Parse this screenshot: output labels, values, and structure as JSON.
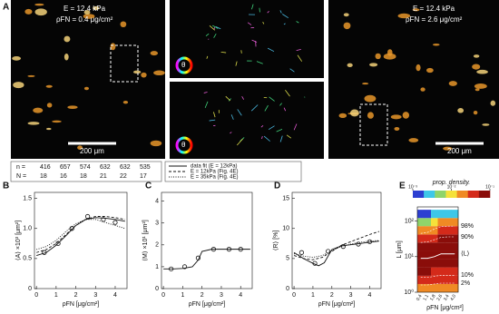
{
  "panel_labels": [
    "A",
    "B",
    "C",
    "D",
    "E"
  ],
  "panel_a": {
    "left": {
      "stiffness": "E = 12.4 kPa",
      "density": "ρFN = 0.4 μg/cm²",
      "scale": "200 μm"
    },
    "right": {
      "stiffness": "E = 12.4 kPa",
      "density": "ρFN = 2.6 μg/cm²",
      "scale": "200 μm"
    },
    "wheel": "θ"
  },
  "table": {
    "rows": [
      [
        "n =",
        416,
        657,
        574,
        632,
        632,
        535
      ],
      [
        "N =",
        18,
        16,
        18,
        21,
        22,
        17
      ]
    ]
  },
  "legend": [
    "data fit (E = 12kPa)",
    "E = 12kPa (Fig. 4E)",
    "E = 35kPa (Fig. 4E)"
  ],
  "chart_data": [
    {
      "type": "line",
      "ylabel": "⟨A⟩ ×10³ [μm²]",
      "xlabel": "ρFN [μg/cm²]",
      "xlim": [
        -0.1,
        4.6
      ],
      "ylim": [
        0,
        1.6
      ],
      "xticks": [
        0,
        1,
        2,
        3,
        4
      ],
      "yticks": [
        0,
        {
          "value": 0.5,
          "label": "0.5"
        },
        {
          "value": 1,
          "label": "1.0"
        },
        {
          "value": 1.5,
          "label": "1.5"
        }
      ],
      "series": [
        {
          "style": "markers",
          "x": [
            0.4,
            1.1,
            1.8,
            2.6,
            3.4,
            4.0
          ],
          "values": [
            0.6,
            0.75,
            1.0,
            1.2,
            1.15,
            1.1
          ]
        },
        {
          "style": "solid",
          "x": [
            0,
            0.5,
            1,
            1.5,
            2,
            2.5,
            3,
            3.5,
            4,
            4.5
          ],
          "values": [
            0.55,
            0.6,
            0.72,
            0.88,
            1.05,
            1.15,
            1.18,
            1.17,
            1.15,
            1.12
          ]
        },
        {
          "style": "dashed",
          "x": [
            0,
            0.5,
            1,
            1.5,
            2,
            2.5,
            3,
            3.5,
            4,
            4.5
          ],
          "values": [
            0.6,
            0.65,
            0.75,
            0.9,
            1.05,
            1.15,
            1.2,
            1.2,
            1.18,
            1.15
          ]
        },
        {
          "style": "dotted",
          "x": [
            0,
            0.5,
            1,
            1.5,
            2,
            2.5,
            3,
            3.5,
            4,
            4.5
          ],
          "values": [
            0.65,
            0.7,
            0.8,
            0.95,
            1.08,
            1.15,
            1.15,
            1.1,
            1.05,
            1.0
          ]
        }
      ]
    },
    {
      "type": "line",
      "ylabel": "⟨M⟩ ×10¹ [μm²]",
      "xlabel": "ρFN [μg/cm²]",
      "xlim": [
        -0.1,
        4.6
      ],
      "ylim": [
        0,
        4.4
      ],
      "xticks": [
        0,
        1,
        2,
        3,
        4
      ],
      "yticks": [
        0,
        1,
        2,
        3,
        4
      ],
      "series": [
        {
          "style": "markers",
          "x": [
            0.4,
            1.1,
            1.8,
            2.6,
            3.4,
            4.0
          ],
          "values": [
            0.9,
            1.0,
            1.4,
            1.8,
            1.8,
            1.8
          ]
        },
        {
          "style": "solid",
          "x": [
            0,
            0.5,
            1,
            1.5,
            1.8,
            2,
            2.5,
            3,
            3.5,
            4,
            4.5
          ],
          "values": [
            0.9,
            0.9,
            0.92,
            1.0,
            1.3,
            1.7,
            1.8,
            1.8,
            1.8,
            1.8,
            1.8
          ]
        }
      ]
    },
    {
      "type": "line",
      "ylabel": "⟨R⟩ [%]",
      "xlabel": "ρFN [μg/cm²]",
      "xlim": [
        -0.1,
        4.6
      ],
      "ylim": [
        0,
        16
      ],
      "xticks": [
        0,
        1,
        2,
        3,
        4
      ],
      "yticks": [
        0,
        5,
        10,
        15
      ],
      "series": [
        {
          "style": "markers",
          "x": [
            0.4,
            1.1,
            1.8,
            2.6,
            3.4,
            4.0
          ],
          "values": [
            6,
            4.2,
            6.2,
            7,
            7.4,
            7.8
          ]
        },
        {
          "style": "solid",
          "x": [
            0,
            0.5,
            1,
            1.3,
            1.6,
            2,
            2.5,
            3,
            3.5,
            4,
            4.5
          ],
          "values": [
            6,
            5,
            4.2,
            3.8,
            4.3,
            6.5,
            7.1,
            7.3,
            7.5,
            7.7,
            7.9
          ]
        },
        {
          "style": "dashed",
          "x": [
            0,
            0.5,
            1,
            1.5,
            2,
            2.5,
            3,
            3.5,
            4,
            4.5
          ],
          "values": [
            5.5,
            5,
            4.8,
            5.2,
            6.2,
            7.2,
            7.8,
            8.4,
            9,
            9.5
          ]
        },
        {
          "style": "dotted",
          "x": [
            0,
            0.5,
            1,
            1.5,
            2,
            2.5,
            3,
            3.5,
            4,
            4.5
          ],
          "values": [
            5.8,
            5.4,
            5.2,
            5.5,
            6.3,
            7,
            7.4,
            7.7,
            7.9,
            8
          ]
        }
      ]
    }
  ],
  "heatmap": {
    "type": "heatmap",
    "colorbar_title": "prop. density.",
    "ylabel": "L [μm]",
    "xlabel": "ρFN [μg/cm²]",
    "categories": [
      "0.4",
      "1.1",
      "1.8",
      "2.6",
      "3.4",
      "4.0"
    ],
    "ylim": [
      1,
      250
    ],
    "yticks": [
      {
        "value": 1,
        "label": "10⁰"
      },
      {
        "value": 10,
        "label": "10¹"
      },
      {
        "value": 100,
        "label": "10²"
      }
    ],
    "colorbar_ticks": [
      {
        "value": 0.001,
        "label": "10⁻³"
      },
      {
        "value": 0.01,
        "label": "10⁻²"
      },
      {
        "value": 0.1,
        "label": "10⁻¹"
      }
    ],
    "bins": [
      1,
      1.7,
      2.9,
      5,
      8.5,
      14.5,
      25,
      42,
      72,
      122,
      208
    ],
    "density": [
      [
        0.03,
        0.03,
        0.02,
        0.02,
        0.02,
        0.02
      ],
      [
        0.05,
        0.05,
        0.04,
        0.04,
        0.04,
        0.04
      ],
      [
        0.07,
        0.07,
        0.06,
        0.06,
        0.06,
        0.06
      ],
      [
        0.09,
        0.09,
        0.08,
        0.08,
        0.08,
        0.08
      ],
      [
        0.1,
        0.1,
        0.1,
        0.09,
        0.09,
        0.09
      ],
      [
        0.08,
        0.08,
        0.09,
        0.09,
        0.09,
        0.09
      ],
      [
        0.05,
        0.05,
        0.06,
        0.07,
        0.07,
        0.07
      ],
      [
        0.02,
        0.02,
        0.03,
        0.04,
        0.04,
        0.04
      ],
      [
        0.006,
        0.006,
        0.01,
        0.015,
        0.015,
        0.015
      ],
      [
        0.001,
        0.001,
        0.002,
        0.003,
        0.003,
        0.003
      ]
    ],
    "quantiles": [
      {
        "label": "98%",
        "values": [
          45,
          48,
          60,
          70,
          72,
          72
        ]
      },
      {
        "label": "90%",
        "values": [
          25,
          26,
          30,
          35,
          36,
          36
        ]
      },
      {
        "label": "⟨L⟩",
        "values": [
          9,
          9,
          10,
          12,
          12,
          12
        ]
      },
      {
        "label": "10%",
        "values": [
          2.6,
          2.6,
          2.8,
          3,
          3,
          3
        ]
      },
      {
        "label": "2%",
        "values": [
          1.6,
          1.6,
          1.7,
          1.8,
          1.8,
          1.8
        ]
      }
    ]
  }
}
